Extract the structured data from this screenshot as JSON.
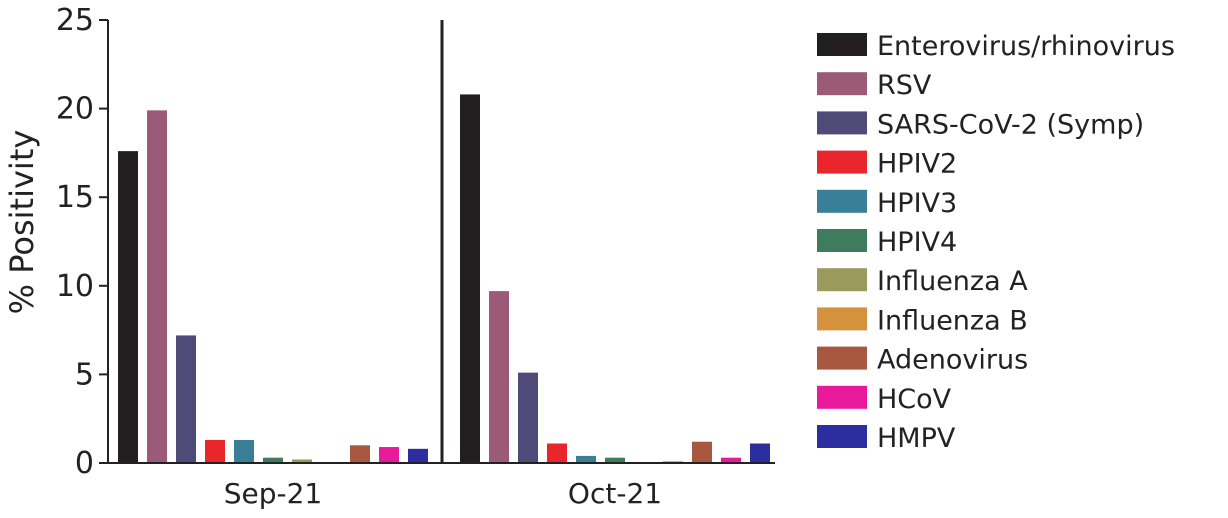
{
  "chart_data": {
    "type": "bar",
    "title": "",
    "xlabel": "",
    "ylabel": "% Positivity",
    "ylim": [
      0,
      25
    ],
    "yticks": [
      0,
      5,
      10,
      15,
      20,
      25
    ],
    "categories": [
      "Sep-21",
      "Oct-21"
    ],
    "grid": false,
    "legend_position": "right",
    "series": [
      {
        "name": "Enterovirus/rhinovirus",
        "color": "#231f20",
        "values": [
          17.6,
          20.8
        ]
      },
      {
        "name": "RSV",
        "color": "#9a5a78",
        "values": [
          19.9,
          9.7
        ]
      },
      {
        "name": "SARS-CoV-2 (Symp)",
        "color": "#4f4b78",
        "values": [
          7.2,
          5.1
        ]
      },
      {
        "name": "HPIV2",
        "color": "#e8262c",
        "values": [
          1.3,
          1.1
        ]
      },
      {
        "name": "HPIV3",
        "color": "#3a7f98",
        "values": [
          1.3,
          0.4
        ]
      },
      {
        "name": "HPIV4",
        "color": "#3f7c5e",
        "values": [
          0.3,
          0.3
        ]
      },
      {
        "name": "Influenza A",
        "color": "#9a9a5c",
        "values": [
          0.2,
          0.05
        ]
      },
      {
        "name": "Influenza B",
        "color": "#d4923e",
        "values": [
          0.05,
          0.1
        ]
      },
      {
        "name": "Adenovirus",
        "color": "#a8583e",
        "values": [
          1.0,
          1.2
        ]
      },
      {
        "name": "HCoV",
        "color": "#e8199a",
        "values": [
          0.9,
          0.3
        ]
      },
      {
        "name": "HMPV",
        "color": "#2c2ea0",
        "values": [
          0.8,
          1.1
        ]
      }
    ]
  }
}
